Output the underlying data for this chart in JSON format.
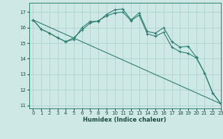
{
  "line1_x": [
    0,
    1,
    2,
    3,
    4,
    5,
    6,
    7,
    8,
    9,
    10,
    11,
    12,
    13,
    14,
    15,
    16,
    17,
    18,
    19,
    20,
    21,
    22,
    23
  ],
  "line1_y": [
    16.5,
    15.9,
    15.65,
    15.35,
    15.1,
    15.25,
    16.0,
    16.4,
    16.4,
    16.85,
    17.15,
    17.2,
    16.5,
    16.95,
    15.75,
    15.65,
    16.0,
    15.1,
    14.75,
    14.8,
    14.1,
    13.1,
    11.8,
    11.1
  ],
  "line2_x": [
    0,
    1,
    2,
    3,
    4,
    5,
    6,
    7,
    8,
    9,
    10,
    11,
    12,
    13,
    14,
    15,
    16,
    17,
    18,
    19,
    20,
    21,
    22,
    23
  ],
  "line2_y": [
    16.5,
    15.9,
    15.65,
    15.35,
    15.1,
    15.35,
    15.85,
    16.3,
    16.45,
    16.75,
    16.95,
    17.0,
    16.45,
    16.8,
    15.6,
    15.45,
    15.7,
    14.75,
    14.45,
    14.35,
    14.05,
    13.1,
    11.8,
    11.1
  ],
  "line3_x": [
    0,
    23
  ],
  "line3_y": [
    16.5,
    11.1
  ],
  "color": "#2a7d6e",
  "bg_color": "#cde8e5",
  "grid_color": "#aacfcc",
  "xlabel": "Humidex (Indice chaleur)",
  "ylim": [
    10.8,
    17.6
  ],
  "xlim": [
    -0.5,
    23
  ],
  "yticks": [
    11,
    12,
    13,
    14,
    15,
    16,
    17
  ],
  "xticks": [
    0,
    1,
    2,
    3,
    4,
    5,
    6,
    7,
    8,
    9,
    10,
    11,
    12,
    13,
    14,
    15,
    16,
    17,
    18,
    19,
    20,
    21,
    22,
    23
  ]
}
